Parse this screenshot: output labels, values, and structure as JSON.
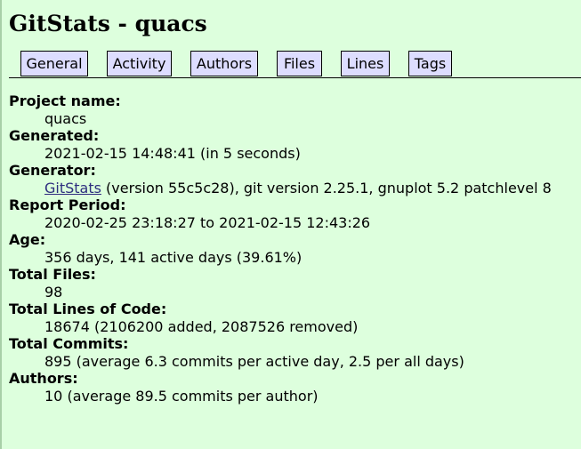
{
  "title": "GitStats - quacs",
  "nav": {
    "tabs": [
      {
        "label": "General"
      },
      {
        "label": "Activity"
      },
      {
        "label": "Authors"
      },
      {
        "label": "Files"
      },
      {
        "label": "Lines"
      },
      {
        "label": "Tags"
      }
    ]
  },
  "general": {
    "project_name": {
      "term": "Project name:",
      "value": "quacs"
    },
    "generated": {
      "term": "Generated:",
      "value": "2021-02-15 14:48:41 (in 5 seconds)"
    },
    "generator": {
      "term": "Generator:",
      "link_text": "GitStats",
      "rest": " (version 55c5c28), git version 2.25.1, gnuplot 5.2 patchlevel 8"
    },
    "report_period": {
      "term": "Report Period:",
      "value": "2020-02-25 23:18:27 to 2021-02-15 12:43:26"
    },
    "age": {
      "term": "Age:",
      "value": "356 days, 141 active days (39.61%)"
    },
    "total_files": {
      "term": "Total Files:",
      "value": "98"
    },
    "total_loc": {
      "term": "Total Lines of Code:",
      "value": "18674 (2106200 added, 2087526 removed)"
    },
    "total_commits": {
      "term": "Total Commits:",
      "value": "895 (average 6.3 commits per active day, 2.5 per all days)"
    },
    "authors": {
      "term": "Authors:",
      "value": "10 (average 89.5 commits per author)"
    }
  },
  "colors": {
    "page_background": "#ddffdd",
    "tab_background": "#ddddff",
    "link": "#2e2e7f"
  }
}
